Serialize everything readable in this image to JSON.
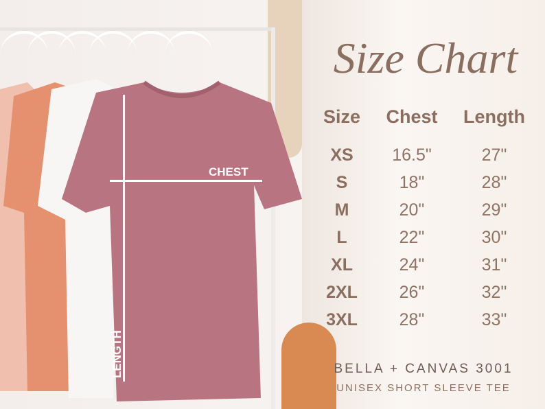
{
  "title": "Size Chart",
  "headers": {
    "size": "Size",
    "chest": "Chest",
    "length": "Length"
  },
  "rows": [
    {
      "size": "XS",
      "chest": "16.5\"",
      "length": "27\""
    },
    {
      "size": "S",
      "chest": "18\"",
      "length": "28\""
    },
    {
      "size": "M",
      "chest": "20\"",
      "length": "29\""
    },
    {
      "size": "L",
      "chest": "22\"",
      "length": "30\""
    },
    {
      "size": "XL",
      "chest": "24\"",
      "length": "31\""
    },
    {
      "size": "2XL",
      "chest": "26\"",
      "length": "32\""
    },
    {
      "size": "3XL",
      "chest": "28\"",
      "length": "33\""
    }
  ],
  "measure_labels": {
    "chest": "CHEST",
    "length": "LENGTH"
  },
  "footer": {
    "brand": "BELLA + CANVAS 3001",
    "description": "UNISEX SHORT SLEEVE TEE"
  },
  "colors": {
    "text": "#8a6f60",
    "shirt_main": "#b87480",
    "shirt_coral": "#e5906f",
    "shirt_peach": "#f0bfae",
    "shirt_white": "#f8f6f4"
  }
}
